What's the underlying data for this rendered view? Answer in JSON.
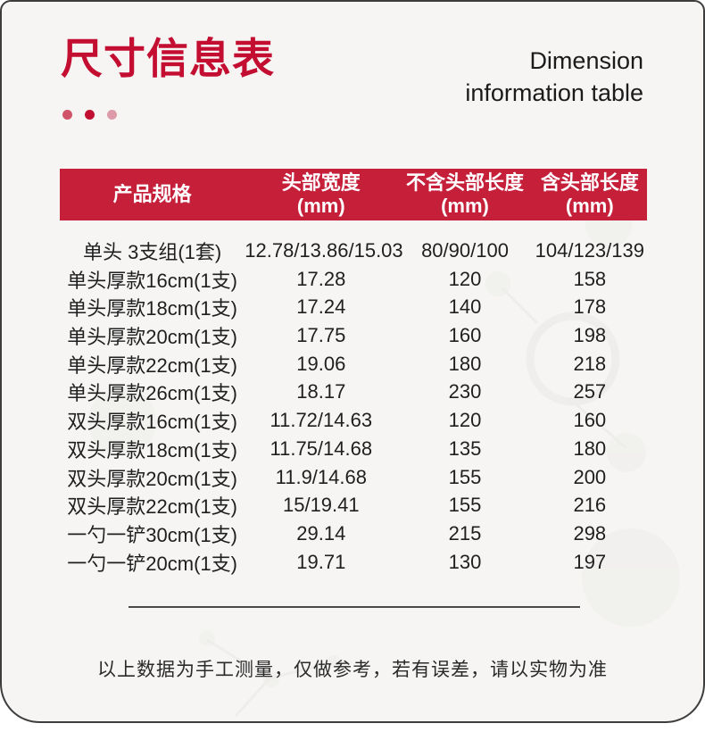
{
  "header": {
    "title_cn": "尺寸信息表",
    "title_en_line1": "Dimension",
    "title_en_line2": "information table"
  },
  "table": {
    "headers": [
      {
        "label": "产品规格",
        "unit": ""
      },
      {
        "label": "头部宽度",
        "unit": "(mm)"
      },
      {
        "label": "不含头部长度",
        "unit": "(mm)"
      },
      {
        "label": "含头部长度",
        "unit": "(mm)"
      }
    ],
    "rows": [
      [
        "单头 3支组(1套)",
        "12.78/13.86/15.03",
        "80/90/100",
        "104/123/139"
      ],
      [
        "单头厚款16cm(1支)",
        "17.28",
        "120",
        "158"
      ],
      [
        "单头厚款18cm(1支)",
        "17.24",
        "140",
        "178"
      ],
      [
        "单头厚款20cm(1支)",
        "17.75",
        "160",
        "198"
      ],
      [
        "单头厚款22cm(1支)",
        "19.06",
        "180",
        "218"
      ],
      [
        "单头厚款26cm(1支)",
        "18.17",
        "230",
        "257"
      ],
      [
        "双头厚款16cm(1支)",
        "11.72/14.63",
        "120",
        "160"
      ],
      [
        "双头厚款18cm(1支)",
        "11.75/14.68",
        "135",
        "180"
      ],
      [
        "双头厚款20cm(1支)",
        "11.9/14.68",
        "155",
        "200"
      ],
      [
        "双头厚款22cm(1支)",
        "15/19.41",
        "155",
        "216"
      ],
      [
        "一勺一铲30cm(1支)",
        "29.14",
        "215",
        "298"
      ],
      [
        "一勺一铲20cm(1支)",
        "19.71",
        "130",
        "197"
      ]
    ]
  },
  "footer": {
    "note": "以上数据为手工测量，仅做参考，若有误差，请以实物为准"
  },
  "colors": {
    "title_red": "#c30d31",
    "banner_red": "#c51f39",
    "dot_1": "#d05468",
    "dot_2": "#c20f31",
    "dot_3": "#dd9aa8",
    "card_bg": "#f6f5f4",
    "text_dark": "#1f1f1f",
    "border_dark": "#3d3d3d"
  }
}
